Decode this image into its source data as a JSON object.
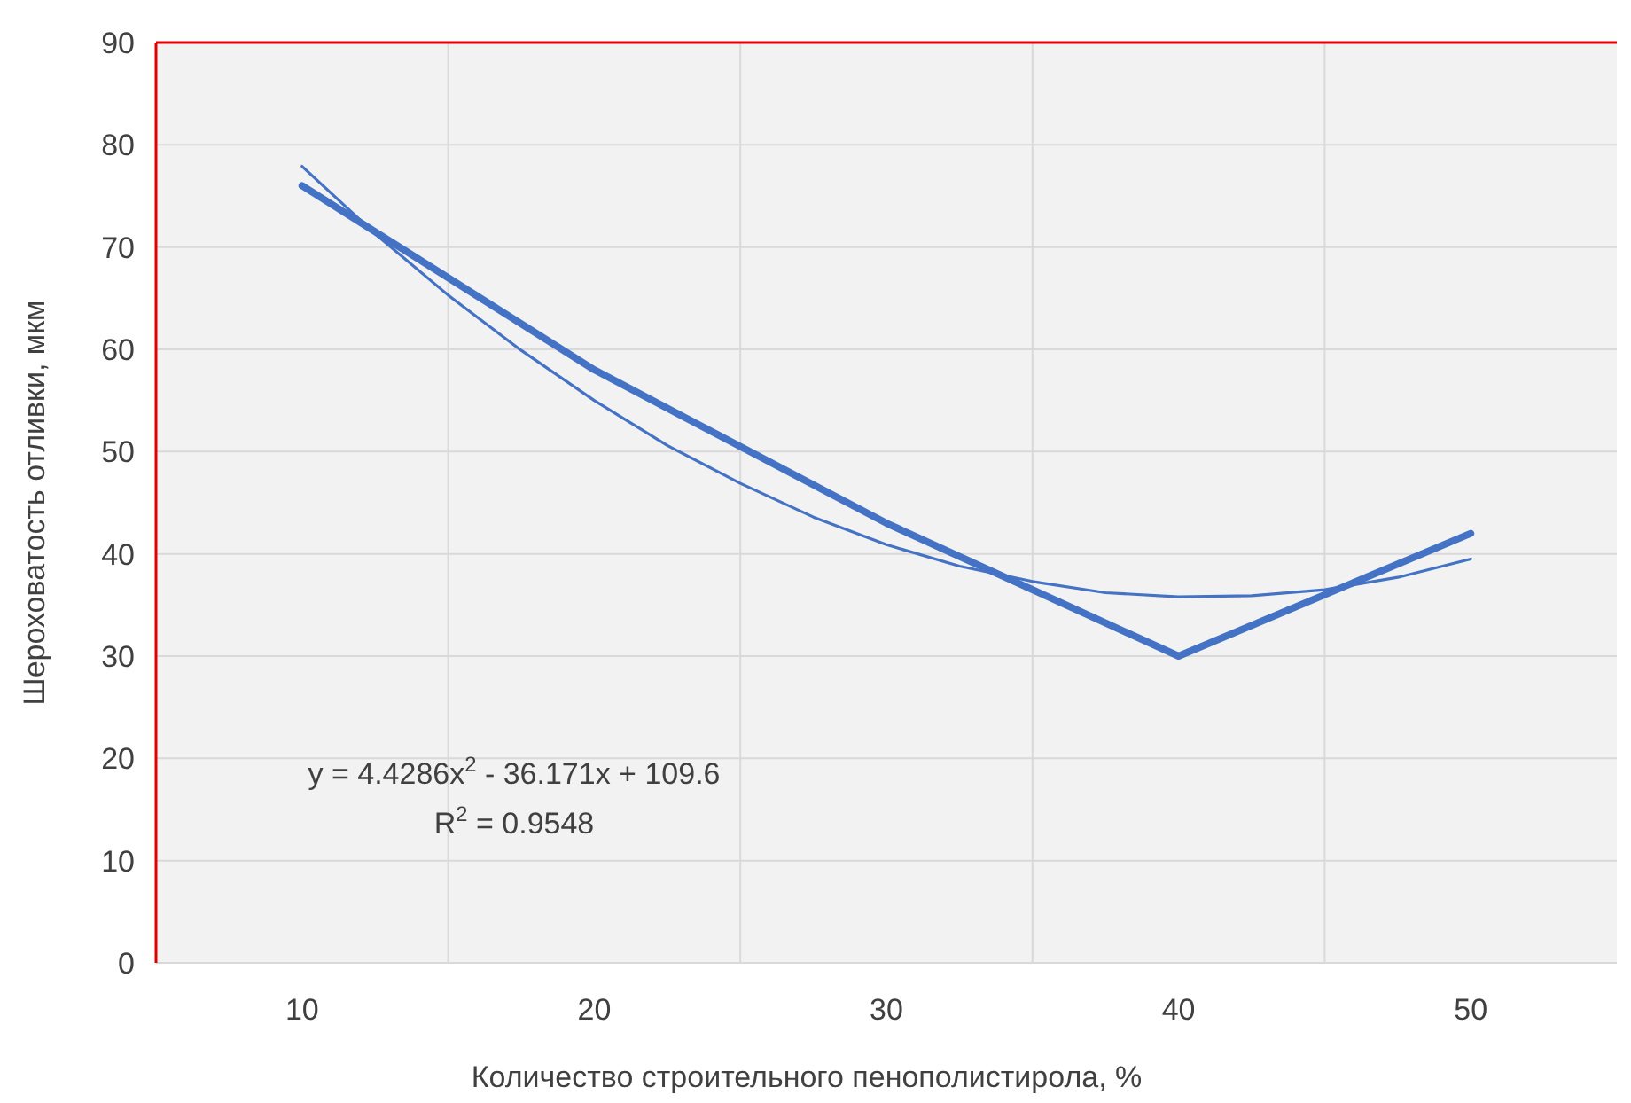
{
  "chart_data": {
    "type": "line",
    "xlabel": "Количество строительного пенополистирола, %",
    "ylabel": "Шероховатость отливки, мкм",
    "x": [
      10,
      20,
      30,
      40,
      50
    ],
    "xlim": [
      5,
      55
    ],
    "xticks": [
      10,
      {
        "value": 15,
        "label": null
      },
      20,
      {
        "value": 25,
        "label": null
      },
      30,
      {
        "value": 35,
        "label": null
      },
      40,
      {
        "value": 45,
        "label": null
      },
      50
    ],
    "ylim": [
      0,
      90
    ],
    "yticks": [
      0,
      10,
      20,
      30,
      40,
      50,
      60,
      70,
      80,
      90
    ],
    "grid": true,
    "series": [
      {
        "color": "#4472c4",
        "values": [
          76,
          58,
          43,
          30,
          42
        ]
      },
      {
        "type": "line",
        "color": "#4472c4",
        "x": [
          10,
          12.5,
          15,
          17.5,
          20,
          22.5,
          25,
          27.5,
          30,
          32.5,
          35,
          37.5,
          40,
          42.5,
          45,
          47.5,
          50
        ],
        "values": [
          77.9,
          71.3,
          65.3,
          59.9,
          55.0,
          50.6,
          46.9,
          43.6,
          40.9,
          38.8,
          37.3,
          36.2,
          35.8,
          35.9,
          36.5,
          37.7,
          39.5
        ]
      }
    ],
    "annotations": [
      "y = 4.4286x$^{2}$ - 36.171x + 109.6",
      "R$^{2}$ = 0.9548"
    ]
  }
}
